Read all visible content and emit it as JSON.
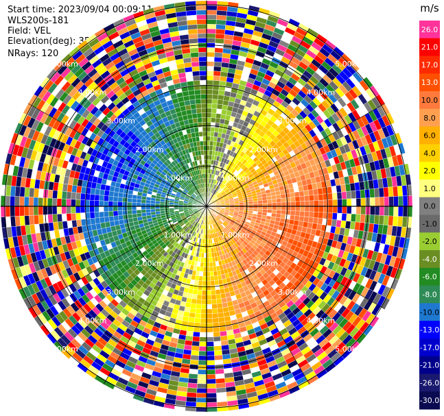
{
  "header": {
    "start_time": "Start time: 2023/09/04 00:09:11",
    "instrument": "WLS200s-181",
    "field": "Field: VEL",
    "elevation": "Elevation(deg): 35.30",
    "nrays": "NRays: 120"
  },
  "chart_data": {
    "type": "heatmap",
    "projection": "polar-ppi",
    "title": "",
    "ring_labels": [
      "1.00km",
      "2.00km",
      "3.00km",
      "4.00km",
      "5.00km"
    ],
    "max_range_km": 5.1,
    "colorbar": {
      "unit": "m/s",
      "ticks": [
        "26.0",
        "21.0",
        "17.0",
        "13.0",
        "10.0",
        "8.0",
        "6.0",
        "4.0",
        "2.0",
        "1.0",
        "0.0",
        "-1.0",
        "-2.0",
        "-4.0",
        "-6.0",
        "-8.0",
        "-10.0",
        "-13.0",
        "-17.0",
        "-21.0",
        "-26.0",
        "-30.0"
      ],
      "colors": [
        "#ff3399",
        "#ff0000",
        "#ff2a00",
        "#ff5000",
        "#ff7a3c",
        "#ffa050",
        "#ffb000",
        "#ffd000",
        "#ffff00",
        "#ffff80",
        "#808080",
        "#6a6a6a",
        "#9acd32",
        "#6b8e23",
        "#228b22",
        "#2e8b57",
        "#1e78d0",
        "#0000ff",
        "#0000cd",
        "#00008b",
        "#191970",
        "#0a0a50"
      ]
    },
    "velocity_pattern": {
      "approaching_direction": "west-northwest",
      "receding_direction": "east-southeast",
      "near_max_speed_ms": 13,
      "outer_noise_range_km": 3.2
    }
  }
}
